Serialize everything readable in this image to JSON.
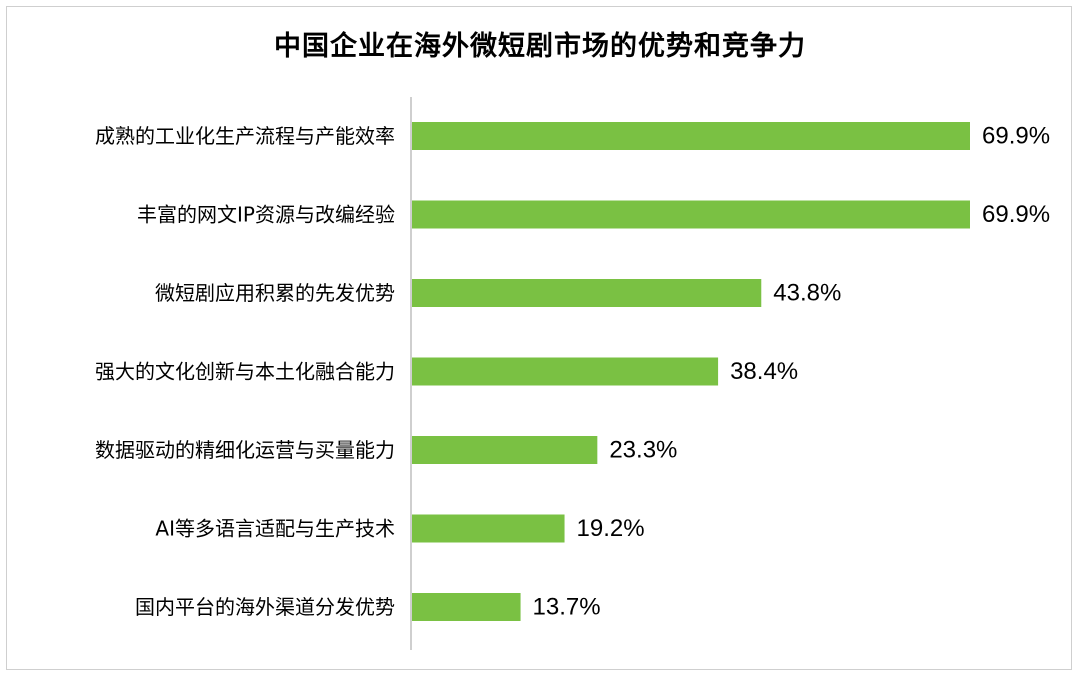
{
  "chart_data": {
    "type": "bar",
    "orientation": "horizontal",
    "title": "中国企业在海外微短剧市场的优势和竞争力",
    "categories": [
      "成熟的工业化生产流程与产能效率",
      "丰富的网文IP资源与改编经验",
      "微短剧应用积累的先发优势",
      "强大的文化创新与本土化融合能力",
      "数据驱动的精细化运营与买量能力",
      "AI等多语言适配与生产技术",
      "国内平台的海外渠道分发优势"
    ],
    "values": [
      69.9,
      69.9,
      43.8,
      38.4,
      23.3,
      19.2,
      13.7
    ],
    "value_labels": [
      "69.9%",
      "69.9%",
      "43.8%",
      "38.4%",
      "23.3%",
      "19.2%",
      "13.7%"
    ],
    "xlim": [
      0,
      69.9
    ],
    "bar_color": "#7ac143",
    "axis_color": "#bfbfbf",
    "grid": false,
    "legend": "none"
  }
}
